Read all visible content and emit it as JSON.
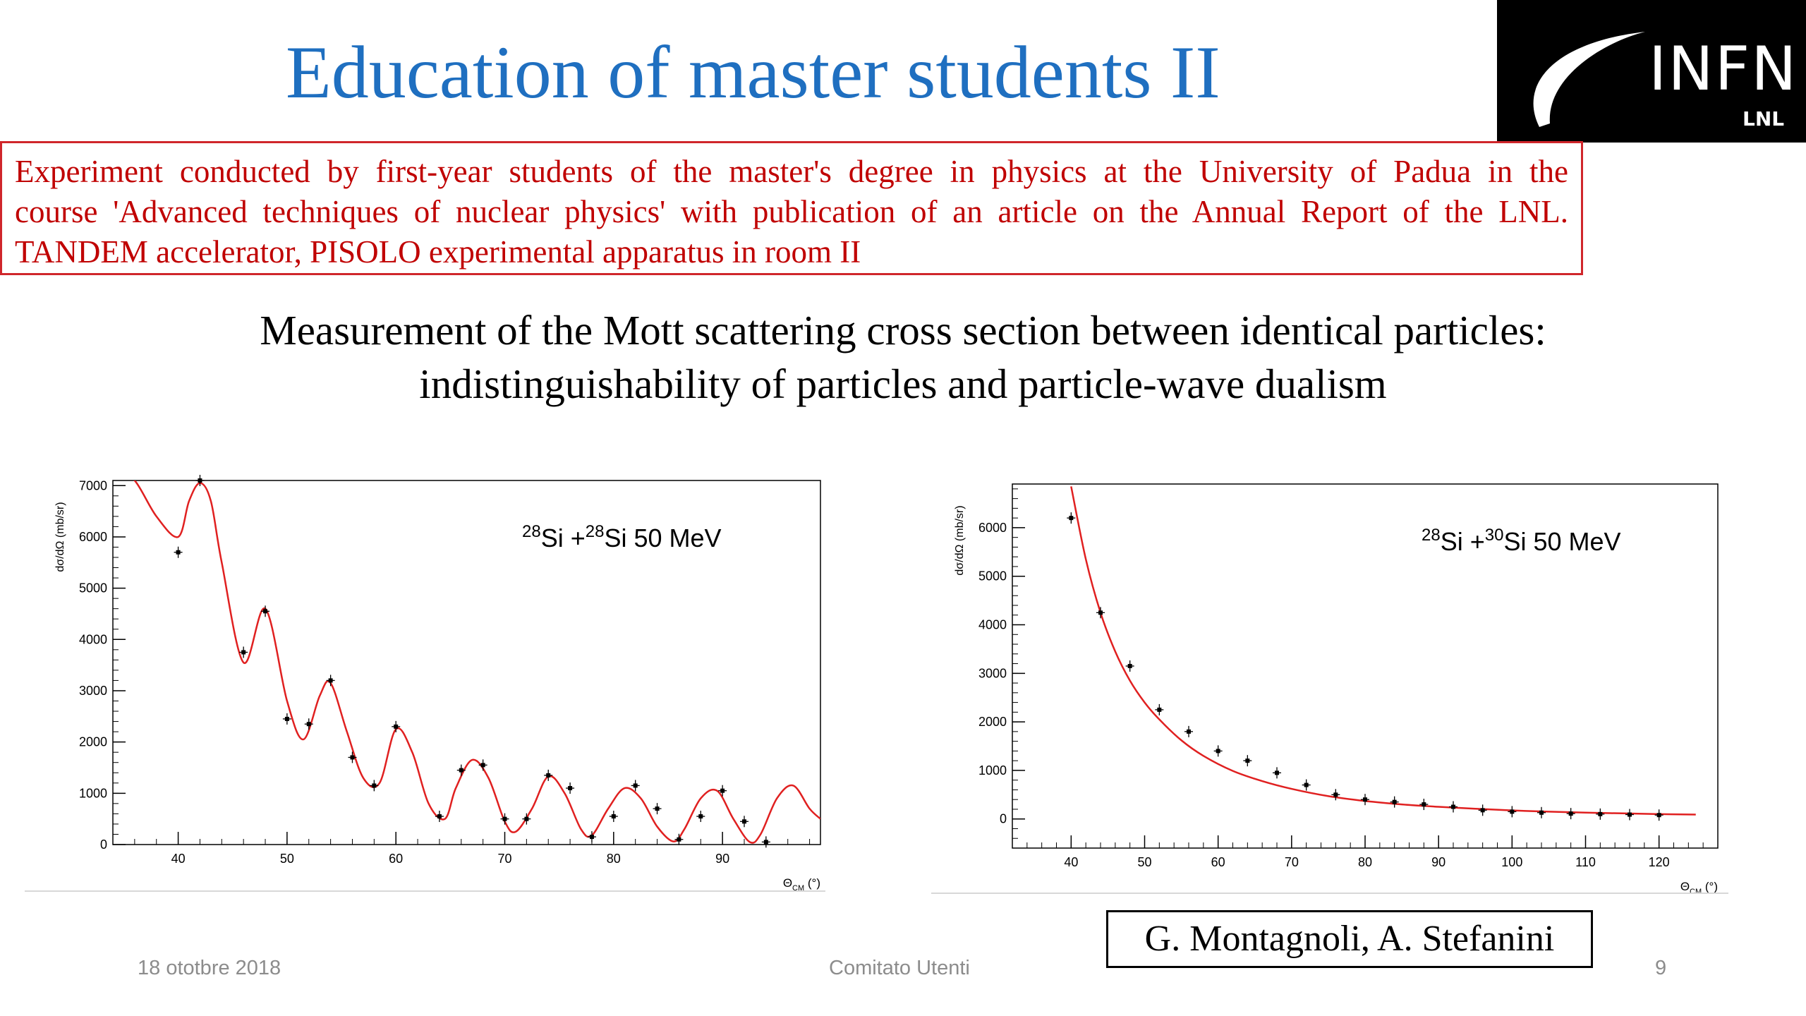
{
  "slide": {
    "title": "Education of master students II",
    "logo": {
      "text": "INFN",
      "subtext": "LNL"
    },
    "info_box": {
      "lines": [
        "Experiment conducted by first-year students of the master's degree in physics at the University of Padua in the",
        "course 'Advanced techniques of nuclear physics' with publication of an article on the Annual Report of the LNL.",
        "TANDEM accelerator, PISOLO experimental apparatus in room II"
      ]
    },
    "headline": {
      "line1": "Measurement of the Mott scattering cross section between identical particles:",
      "line2": "indistinguishability of particles and particle-wave dualism"
    },
    "credit": "G. Montagnoli, A. Stefanini",
    "footer": {
      "date": "18 ototbre 2018",
      "center": "Comitato Utenti",
      "page": "9"
    },
    "colors": {
      "title": "#1f6fc0",
      "box_text": "#c00000",
      "box_border": "#d0262b",
      "fit_line": "#e02020"
    }
  },
  "chart_data": [
    {
      "type": "scatter",
      "title": "28Si + 28Si   50 MeV",
      "title_parts": {
        "a_mass": "28",
        "a_el": "Si",
        "b_mass": "28",
        "b_el": "Si",
        "energy": "50 MeV"
      },
      "ylabel": "dσ/dΩ (mb/sr)",
      "ylabel_parts": {
        "num": "dσ",
        "den": "dΩ",
        "unit": "(mb/sr)"
      },
      "xlabel": "Θ_CM (°)",
      "xlabel_parts": {
        "sym": "Θ",
        "sub": "CM",
        "unit": "(°)"
      },
      "xlim": [
        34,
        99
      ],
      "ylim": [
        0,
        7100
      ],
      "xticks": [
        40,
        50,
        60,
        70,
        80,
        90
      ],
      "yticks": [
        0,
        1000,
        2000,
        3000,
        4000,
        5000,
        6000,
        7000
      ],
      "series": [
        {
          "kind": "points",
          "x": [
            40,
            42,
            46,
            48,
            50,
            52,
            54,
            56,
            58,
            60,
            64,
            66,
            68,
            70,
            72,
            74,
            76,
            78,
            80,
            82,
            84,
            86,
            88,
            90,
            92,
            94
          ],
          "y": [
            5700,
            7100,
            3750,
            4550,
            2450,
            2350,
            3200,
            1700,
            1150,
            2300,
            550,
            1450,
            1550,
            500,
            500,
            1350,
            1100,
            150,
            550,
            1150,
            700,
            100,
            550,
            1050,
            450,
            50
          ]
        },
        {
          "kind": "fit",
          "x": [
            34.5,
            36,
            38,
            40,
            41,
            42,
            43,
            44,
            46,
            48,
            50,
            51.5,
            53,
            54,
            55.5,
            57,
            58.5,
            60,
            61.5,
            63,
            64.5,
            65.5,
            67,
            68.5,
            70,
            71,
            72.5,
            74,
            75.5,
            77,
            78,
            79.5,
            81,
            82.5,
            84,
            85.5,
            86.5,
            88,
            89.5,
            91,
            92.5,
            93.5,
            95,
            96.5,
            98,
            99
          ],
          "y": [
            7200,
            7100,
            6400,
            6000,
            6700,
            7050,
            6700,
            5500,
            3550,
            4600,
            2800,
            2050,
            2900,
            3150,
            2200,
            1300,
            1200,
            2250,
            1800,
            800,
            500,
            1100,
            1650,
            1300,
            450,
            250,
            700,
            1330,
            1000,
            300,
            180,
            700,
            1100,
            900,
            350,
            60,
            300,
            900,
            1050,
            500,
            50,
            200,
            900,
            1150,
            700,
            500
          ]
        }
      ]
    },
    {
      "type": "scatter",
      "title": "28Si + 30Si   50 MeV",
      "title_parts": {
        "a_mass": "28",
        "a_el": "Si",
        "b_mass": "30",
        "b_el": "Si",
        "energy": "50 MeV"
      },
      "ylabel": "dσ/dΩ (mb/sr)",
      "ylabel_parts": {
        "num": "dσ",
        "den": "dΩ",
        "unit": "(mb/sr)"
      },
      "xlabel": "Θ_CM (°)",
      "xlabel_parts": {
        "sym": "Θ",
        "sub": "CM",
        "unit": "(°)"
      },
      "xlim": [
        32,
        128
      ],
      "ylim": [
        -600,
        6900
      ],
      "xticks": [
        40,
        50,
        60,
        70,
        80,
        90,
        100,
        110,
        120
      ],
      "yticks": [
        0,
        1000,
        2000,
        3000,
        4000,
        5000,
        6000
      ],
      "series": [
        {
          "kind": "points",
          "x": [
            40,
            44,
            48,
            52,
            56,
            60,
            64,
            68,
            72,
            76,
            80,
            84,
            88,
            92,
            96,
            100,
            104,
            108,
            112,
            116,
            120
          ],
          "y": [
            6200,
            4250,
            3150,
            2250,
            1800,
            1400,
            1200,
            950,
            700,
            500,
            400,
            350,
            300,
            250,
            180,
            150,
            130,
            110,
            100,
            90,
            80
          ]
        },
        {
          "kind": "fit",
          "x": [
            40,
            42,
            44,
            46,
            48,
            50,
            52,
            55,
            58,
            62,
            66,
            70,
            75,
            80,
            85,
            90,
            95,
            100,
            105,
            110,
            115,
            120,
            125
          ],
          "y": [
            6850,
            5350,
            4250,
            3450,
            2850,
            2400,
            2050,
            1620,
            1300,
            990,
            780,
            620,
            470,
            370,
            300,
            250,
            210,
            175,
            150,
            130,
            115,
            100,
            90
          ]
        }
      ]
    }
  ]
}
